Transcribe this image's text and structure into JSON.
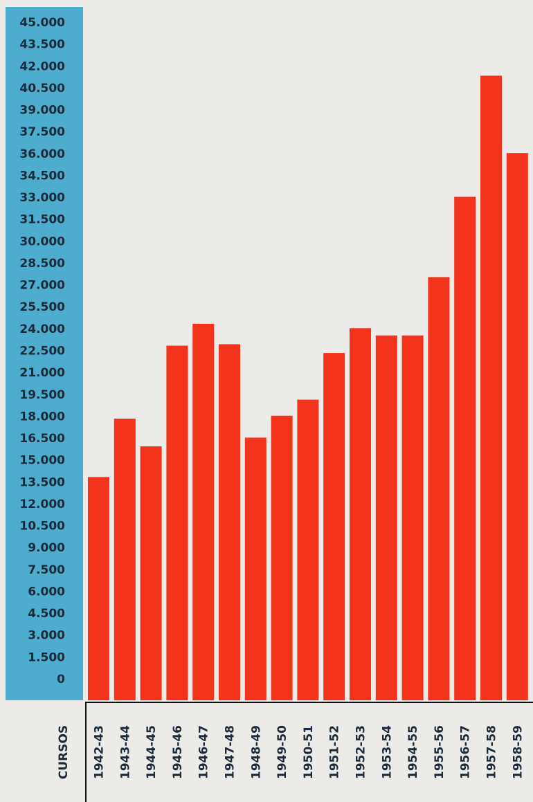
{
  "chart_data": {
    "type": "bar",
    "x_label": "CURSOS",
    "categories": [
      "1942-43",
      "1943-44",
      "1944-45",
      "1945-46",
      "1946-47",
      "1947-48",
      "1948-49",
      "1949-50",
      "1950-51",
      "1951-52",
      "1952-53",
      "1953-54",
      "1954-55",
      "1955-56",
      "1956-57",
      "1957-58",
      "1958-59"
    ],
    "values": [
      15300,
      19300,
      17400,
      24300,
      25800,
      24400,
      18000,
      19500,
      20600,
      23800,
      25500,
      25000,
      25000,
      29000,
      34500,
      42800,
      37500
    ],
    "color": "#f4331d",
    "ylim": [
      0,
      45000
    ],
    "yticks": [
      0,
      {
        "value": 1500,
        "label": "1.500"
      },
      {
        "value": 3000,
        "label": "3.000"
      },
      {
        "value": 4500,
        "label": "4.500"
      },
      {
        "value": 6000,
        "label": "6.000"
      },
      {
        "value": 7500,
        "label": "7.500"
      },
      {
        "value": 9000,
        "label": "9.000"
      },
      {
        "value": 10500,
        "label": "10.500"
      },
      {
        "value": 12000,
        "label": "12.000"
      },
      {
        "value": 13500,
        "label": "13.500"
      },
      {
        "value": 15000,
        "label": "15.000"
      },
      {
        "value": 16500,
        "label": "16.500"
      },
      {
        "value": 18000,
        "label": "18.000"
      },
      {
        "value": 19500,
        "label": "19.500"
      },
      {
        "value": 21000,
        "label": "21.000"
      },
      {
        "value": 22500,
        "label": "22.500"
      },
      {
        "value": 24000,
        "label": "24.000"
      },
      {
        "value": 25500,
        "label": "25.500"
      },
      {
        "value": 27000,
        "label": "27.000"
      },
      {
        "value": 28500,
        "label": "28.500"
      },
      {
        "value": 30000,
        "label": "30.000"
      },
      {
        "value": 31500,
        "label": "31.500"
      },
      {
        "value": 33000,
        "label": "33.000"
      },
      {
        "value": 34500,
        "label": "34.500"
      },
      {
        "value": 36000,
        "label": "36.000"
      },
      {
        "value": 37500,
        "label": "37.500"
      },
      {
        "value": 39000,
        "label": "39.000"
      },
      {
        "value": 40500,
        "label": "40.500"
      },
      {
        "value": 42000,
        "label": "42.000"
      },
      {
        "value": 43500,
        "label": "43.500"
      },
      {
        "value": 45000,
        "label": "45.000"
      }
    ]
  }
}
